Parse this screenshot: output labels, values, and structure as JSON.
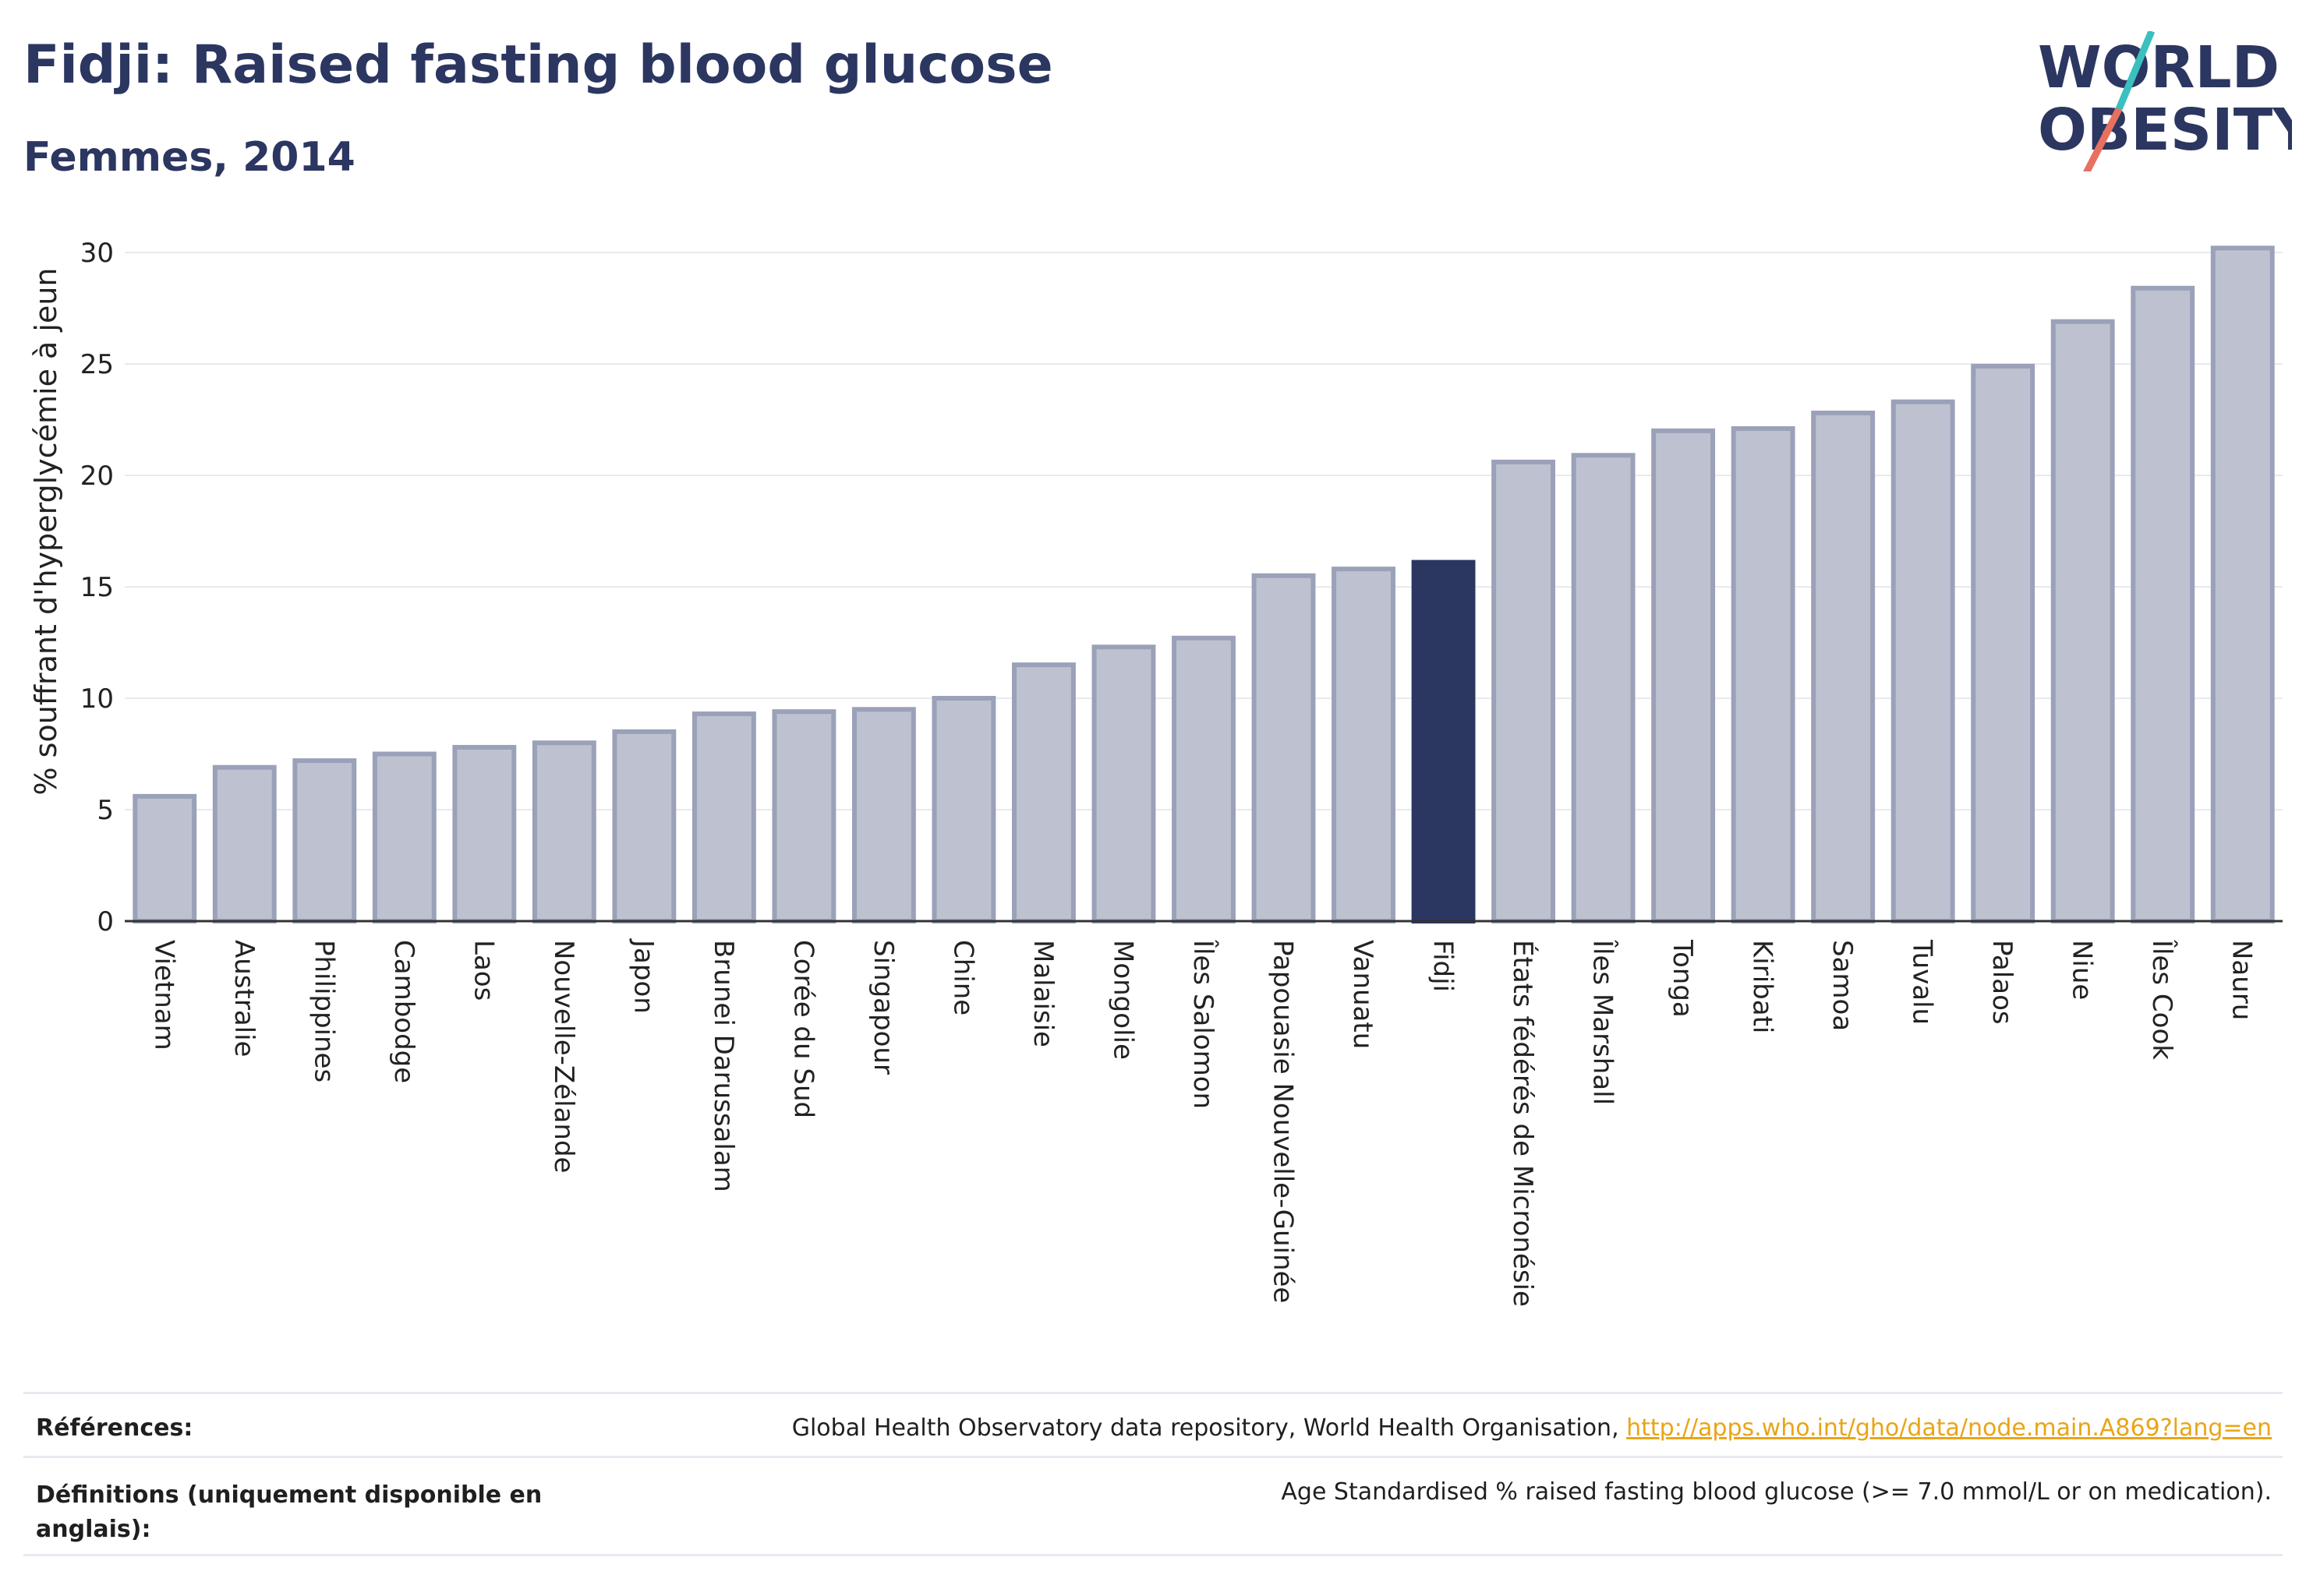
{
  "header": {
    "title": "Fidji: Raised fasting blood glucose",
    "subtitle": "Femmes, 2014"
  },
  "logo": {
    "line1": "WORLD",
    "line2": "OBESITY",
    "colors": {
      "text": "#2b3661",
      "slash_top": "#3bbfbf",
      "slash_bottom": "#e8705f"
    }
  },
  "chart_data": {
    "type": "bar",
    "ylabel": "% souffrant d'hyperglycémie à jeun",
    "xlabel": "",
    "ylim": [
      0,
      30
    ],
    "yticks": [
      0,
      5,
      10,
      15,
      20,
      25,
      30
    ],
    "grid": true,
    "highlight": "Fidji",
    "colors": {
      "bar": "#bec2d0",
      "bar_edge": "#9aa1b8",
      "highlight": "#2b3661"
    },
    "categories": [
      "Vietnam",
      "Australie",
      "Philippines",
      "Cambodge",
      "Laos",
      "Nouvelle-Zélande",
      "Japon",
      "Brunei Darussalam",
      "Corée du Sud",
      "Singapour",
      "Chine",
      "Malaisie",
      "Mongolie",
      "Îles Salomon",
      "Papouasie Nouvelle-Guinée",
      "Vanuatu",
      "Fidji",
      "États fédérés de Micronésie",
      "Îles Marshall",
      "Tonga",
      "Kiribati",
      "Samoa",
      "Tuvalu",
      "Palaos",
      "Niue",
      "Îles Cook",
      "Nauru"
    ],
    "values": [
      5.6,
      6.9,
      7.2,
      7.5,
      7.8,
      8.0,
      8.5,
      9.3,
      9.4,
      9.5,
      10.0,
      11.5,
      12.3,
      12.7,
      15.5,
      15.8,
      16.1,
      20.6,
      20.9,
      22.0,
      22.1,
      22.8,
      23.3,
      24.9,
      26.9,
      28.4,
      30.2
    ]
  },
  "footer": {
    "references_label": "Références:",
    "references_text": "Global Health Observatory data repository, World Health Organisation, ",
    "references_link": "http://apps.who.int/gho/data/node.main.A869?lang=en",
    "definitions_label_line1": "Définitions (uniquement disponible en",
    "definitions_label_line2": "anglais):",
    "definitions_text": "Age Standardised % raised fasting blood glucose (>= 7.0 mmol/L or on medication)."
  }
}
